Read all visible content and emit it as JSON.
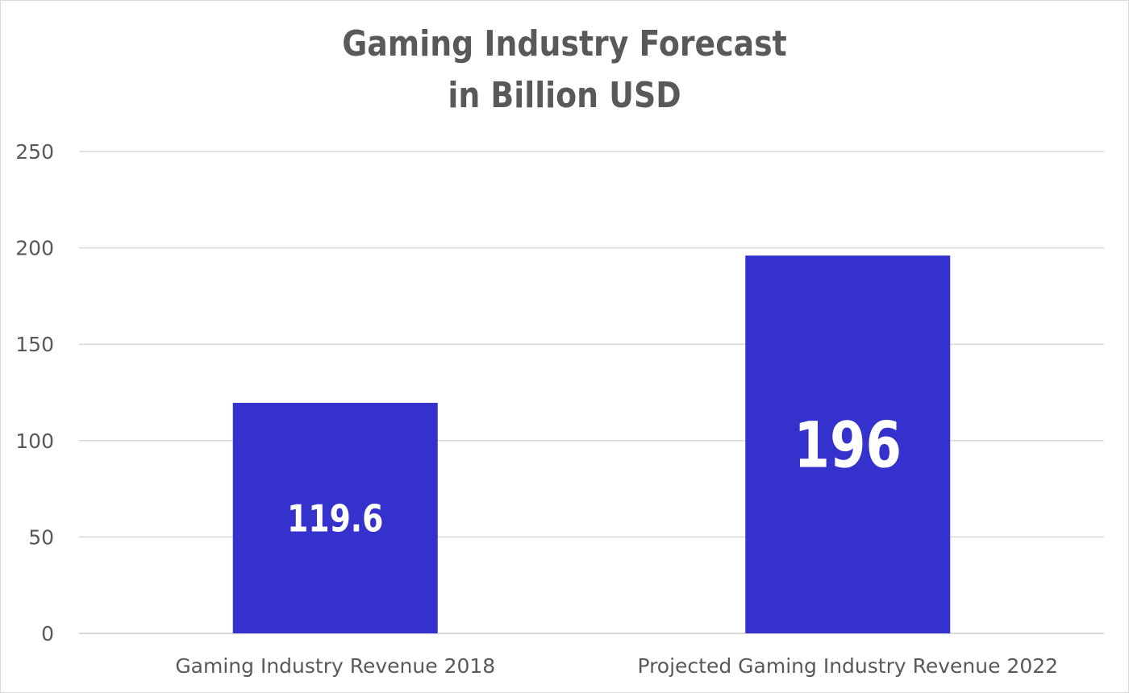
{
  "chart_data": {
    "type": "bar",
    "title_lines": [
      "Gaming Industry Forecast",
      "in Billion USD"
    ],
    "categories": [
      "Gaming Industry Revenue 2018",
      "Projected Gaming Industry Revenue 2022"
    ],
    "values": [
      119.6,
      196
    ],
    "data_labels": [
      "119.6",
      "196"
    ],
    "yticks": [
      "0",
      "50",
      "100",
      "150",
      "200",
      "250"
    ],
    "ylim": [
      0,
      250
    ],
    "grid": true,
    "legend": "none",
    "bar_color": "#3431CC",
    "gridline_color": "#d9d9d9",
    "text_color": "#595959"
  }
}
